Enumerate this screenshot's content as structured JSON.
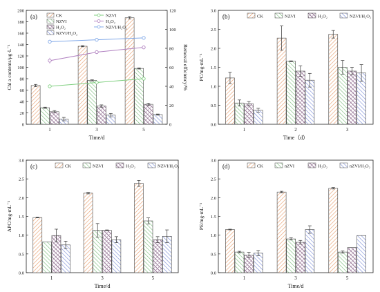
{
  "colors": {
    "ck": "#e8a070",
    "nzvi": "#7fbf7f",
    "h2o2": "#9a7a9a",
    "combo": "#7f90d8",
    "line_nzvi": "#7fcf7f",
    "line_h2o2": "#b080c0",
    "line_combo": "#80a8e8"
  },
  "chart_data": [
    {
      "type": "bar",
      "panel": "(a)",
      "categories": [
        "1",
        "3",
        "5"
      ],
      "xlabel": "Time/d",
      "ylabel": "Chl a contents/μg·L⁻¹",
      "ylim": [
        0,
        200
      ],
      "yticks": [
        "0",
        "20",
        "40",
        "60",
        "80",
        "100",
        "120",
        "140",
        "160",
        "180",
        "200"
      ],
      "series": [
        {
          "name": "CK",
          "values": [
            68,
            137,
            187
          ],
          "errors": [
            2,
            1,
            2
          ]
        },
        {
          "name": "NZVI",
          "values": [
            29,
            77,
            98
          ],
          "errors": [
            1,
            1,
            1
          ]
        },
        {
          "name": "H₂O₂",
          "values": [
            22,
            32,
            35
          ],
          "errors": [
            2,
            2,
            2
          ]
        },
        {
          "name": "NZVI/H₂O₂",
          "values": [
            9,
            16,
            17
          ],
          "errors": [
            3,
            3,
            1
          ]
        }
      ],
      "y2label": "Removal efficiency/%",
      "y2lim": [
        0,
        120
      ],
      "y2ticks": [
        "0",
        "20",
        "40",
        "60",
        "80",
        "100",
        "120"
      ],
      "lines": [
        {
          "name": "NZVI",
          "values": [
            40,
            44,
            48
          ],
          "errors": [
            2,
            1,
            1
          ]
        },
        {
          "name": "H₂O₂",
          "values": [
            67,
            76,
            81
          ],
          "errors": [
            3,
            2,
            2
          ]
        },
        {
          "name": "NZVI/H₂O₂",
          "values": [
            87,
            89,
            91
          ],
          "errors": [
            2,
            1,
            1
          ]
        }
      ],
      "legend_bars": [
        "CK",
        "NZVI",
        "H₂O₂",
        "NZVI/H₂O₂"
      ],
      "legend_lines": [
        "NZVI",
        "H₂O₂",
        "NZVI/H₂O₂"
      ]
    },
    {
      "type": "bar",
      "panel": "(b)",
      "categories": [
        "1",
        "2",
        "3"
      ],
      "xlabel": "Time（d）",
      "ylabel": "PC/mg·mL⁻¹",
      "ylim": [
        0,
        3.0
      ],
      "yticks": [
        "0.0",
        "0.5",
        "1.0",
        "1.5",
        "2.0",
        "2.5",
        "3.0"
      ],
      "series": [
        {
          "name": "CK",
          "values": [
            1.22,
            2.27,
            2.37
          ],
          "errors": [
            0.15,
            0.32,
            0.1
          ]
        },
        {
          "name": "NZVI",
          "values": [
            0.56,
            1.66,
            1.5
          ],
          "errors": [
            0.08,
            0.01,
            0.18
          ]
        },
        {
          "name": "H₂O₂",
          "values": [
            0.54,
            1.4,
            1.4
          ],
          "errors": [
            0.06,
            0.14,
            0.1
          ]
        },
        {
          "name": "NZVI/H₂O₂",
          "values": [
            0.37,
            1.16,
            1.35
          ],
          "errors": [
            0.05,
            0.18,
            0.22
          ]
        }
      ],
      "legend": [
        "CK",
        "NZVI",
        "H₂O₂",
        "NZVI/H₂O₂"
      ]
    },
    {
      "type": "bar",
      "panel": "(c)",
      "categories": [
        "1",
        "3",
        "5"
      ],
      "xlabel": "Time/d",
      "ylabel": "APC/mg·mL⁻¹",
      "ylim": [
        0,
        3.0
      ],
      "yticks": [
        "0.0",
        "0.5",
        "1.0",
        "1.5",
        "2.0",
        "2.5",
        "3.0"
      ],
      "series": [
        {
          "name": "CK",
          "values": [
            1.47,
            2.12,
            2.38
          ],
          "errors": [
            0.01,
            0.02,
            0.08
          ]
        },
        {
          "name": "NZVI",
          "values": [
            0.82,
            1.13,
            1.38
          ],
          "errors": [
            0.0,
            0.18,
            0.08
          ]
        },
        {
          "name": "H₂O₂",
          "values": [
            0.99,
            1.13,
            0.88
          ],
          "errors": [
            0.17,
            0.01,
            0.08
          ]
        },
        {
          "name": "NZVI/H₂O₂",
          "values": [
            0.74,
            0.88,
            0.97
          ],
          "errors": [
            0.1,
            0.08,
            0.17
          ]
        }
      ],
      "legend": [
        "CK",
        "NZVI",
        "H₂O₂",
        "NZVI/H₂O₂"
      ]
    },
    {
      "type": "bar",
      "panel": "(d)",
      "categories": [
        "1",
        "3",
        "5"
      ],
      "xlabel": "Time/d",
      "ylabel": "PE/mg·mL⁻¹",
      "ylim": [
        0,
        3.0
      ],
      "yticks": [
        "0.0",
        "0.5",
        "1.0",
        "1.5",
        "2.0",
        "2.5",
        "3.0"
      ],
      "series": [
        {
          "name": "CK",
          "values": [
            1.15,
            2.15,
            2.25
          ],
          "errors": [
            0.01,
            0.02,
            0.02
          ]
        },
        {
          "name": "nZVI",
          "values": [
            0.55,
            0.9,
            0.55
          ],
          "errors": [
            0.02,
            0.03,
            0.03
          ]
        },
        {
          "name": "H₂O₂",
          "values": [
            0.47,
            0.81,
            0.67
          ],
          "errors": [
            0.07,
            0.05,
            0.0
          ]
        },
        {
          "name": "nZVI/H₂O₂",
          "values": [
            0.52,
            1.15,
            0.99
          ],
          "errors": [
            0.07,
            0.1,
            0.0
          ]
        }
      ],
      "legend": [
        "CK",
        "nZVI",
        "H₂O₂",
        "nZVI/H₂O₂"
      ]
    }
  ]
}
